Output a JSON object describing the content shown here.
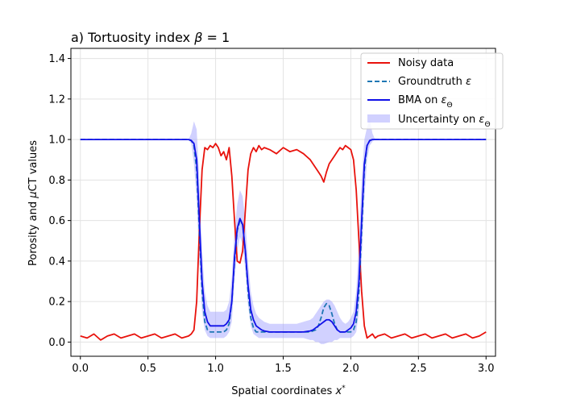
{
  "chart_data": {
    "type": "line",
    "title": "a) Tortuosity index β = 1",
    "xlabel": "Spatial coordinates x*",
    "ylabel": "Porosity and μCT values",
    "xlim": [
      -0.07,
      3.07
    ],
    "ylim": [
      -0.07,
      1.45
    ],
    "grid": true,
    "legend_position": "top-right",
    "x_ticks": [
      "0.0",
      "0.5",
      "1.0",
      "1.5",
      "2.0",
      "2.5",
      "3.0"
    ],
    "y_ticks": [
      "0.0",
      "0.2",
      "0.4",
      "0.6",
      "0.8",
      "1.0",
      "1.2",
      "1.4"
    ],
    "x": [
      0.0,
      0.05,
      0.1,
      0.15,
      0.2,
      0.25,
      0.3,
      0.35,
      0.4,
      0.45,
      0.5,
      0.55,
      0.6,
      0.65,
      0.7,
      0.75,
      0.8,
      0.82,
      0.84,
      0.86,
      0.88,
      0.9,
      0.92,
      0.94,
      0.96,
      0.98,
      1.0,
      1.02,
      1.04,
      1.06,
      1.08,
      1.1,
      1.12,
      1.14,
      1.16,
      1.18,
      1.2,
      1.22,
      1.24,
      1.26,
      1.28,
      1.3,
      1.32,
      1.34,
      1.36,
      1.4,
      1.45,
      1.5,
      1.55,
      1.6,
      1.65,
      1.7,
      1.72,
      1.74,
      1.76,
      1.78,
      1.8,
      1.82,
      1.84,
      1.86,
      1.88,
      1.9,
      1.92,
      1.94,
      1.96,
      1.98,
      2.0,
      2.02,
      2.04,
      2.06,
      2.08,
      2.1,
      2.12,
      2.14,
      2.16,
      2.18,
      2.2,
      2.25,
      2.3,
      2.35,
      2.4,
      2.45,
      2.5,
      2.55,
      2.6,
      2.65,
      2.7,
      2.75,
      2.8,
      2.85,
      2.9,
      2.95,
      3.0
    ],
    "series": [
      {
        "name": "Noisy data",
        "color": "#e8120c",
        "style": "solid",
        "values": [
          0.03,
          0.02,
          0.04,
          0.01,
          0.03,
          0.04,
          0.02,
          0.03,
          0.04,
          0.02,
          0.03,
          0.04,
          0.02,
          0.03,
          0.04,
          0.02,
          0.03,
          0.04,
          0.06,
          0.2,
          0.55,
          0.85,
          0.96,
          0.95,
          0.97,
          0.96,
          0.98,
          0.96,
          0.92,
          0.94,
          0.9,
          0.96,
          0.82,
          0.6,
          0.4,
          0.39,
          0.45,
          0.65,
          0.85,
          0.93,
          0.96,
          0.94,
          0.97,
          0.95,
          0.96,
          0.95,
          0.93,
          0.96,
          0.94,
          0.95,
          0.93,
          0.9,
          0.88,
          0.86,
          0.84,
          0.82,
          0.79,
          0.84,
          0.88,
          0.9,
          0.92,
          0.94,
          0.96,
          0.95,
          0.97,
          0.96,
          0.95,
          0.9,
          0.75,
          0.5,
          0.25,
          0.08,
          0.02,
          0.03,
          0.04,
          0.02,
          0.03,
          0.04,
          0.02,
          0.03,
          0.04,
          0.02,
          0.03,
          0.04,
          0.02,
          0.03,
          0.04,
          0.02,
          0.03,
          0.04,
          0.02,
          0.03,
          0.05
        ]
      },
      {
        "name": "Groundtruth ε",
        "color": "#1f77b4",
        "style": "dashed",
        "values": [
          1.0,
          1.0,
          1.0,
          1.0,
          1.0,
          1.0,
          1.0,
          1.0,
          1.0,
          1.0,
          1.0,
          1.0,
          1.0,
          1.0,
          1.0,
          1.0,
          1.0,
          0.995,
          0.97,
          0.85,
          0.55,
          0.25,
          0.1,
          0.06,
          0.05,
          0.05,
          0.05,
          0.05,
          0.05,
          0.05,
          0.06,
          0.09,
          0.2,
          0.4,
          0.55,
          0.6,
          0.58,
          0.45,
          0.25,
          0.12,
          0.07,
          0.05,
          0.05,
          0.05,
          0.05,
          0.05,
          0.05,
          0.05,
          0.05,
          0.05,
          0.05,
          0.05,
          0.055,
          0.06,
          0.08,
          0.12,
          0.17,
          0.19,
          0.18,
          0.14,
          0.09,
          0.06,
          0.05,
          0.05,
          0.05,
          0.05,
          0.05,
          0.06,
          0.1,
          0.25,
          0.55,
          0.85,
          0.97,
          0.995,
          1.0,
          1.0,
          1.0,
          1.0,
          1.0,
          1.0,
          1.0,
          1.0,
          1.0,
          1.0,
          1.0,
          1.0,
          1.0,
          1.0,
          1.0,
          1.0,
          1.0,
          1.0,
          1.0
        ]
      },
      {
        "name": "BMA on ε_Θ",
        "color": "#1010e8",
        "style": "solid",
        "values": [
          1.0,
          1.0,
          1.0,
          1.0,
          1.0,
          1.0,
          1.0,
          1.0,
          1.0,
          1.0,
          1.0,
          1.0,
          1.0,
          1.0,
          1.0,
          1.0,
          1.0,
          0.995,
          0.98,
          0.9,
          0.6,
          0.3,
          0.15,
          0.1,
          0.08,
          0.08,
          0.08,
          0.08,
          0.08,
          0.08,
          0.09,
          0.11,
          0.2,
          0.42,
          0.56,
          0.61,
          0.58,
          0.45,
          0.28,
          0.16,
          0.11,
          0.08,
          0.07,
          0.06,
          0.055,
          0.05,
          0.05,
          0.05,
          0.05,
          0.05,
          0.05,
          0.055,
          0.06,
          0.07,
          0.08,
          0.09,
          0.1,
          0.11,
          0.11,
          0.1,
          0.08,
          0.06,
          0.05,
          0.05,
          0.05,
          0.06,
          0.07,
          0.09,
          0.15,
          0.3,
          0.6,
          0.88,
          0.97,
          0.995,
          1.0,
          1.0,
          1.0,
          1.0,
          1.0,
          1.0,
          1.0,
          1.0,
          1.0,
          1.0,
          1.0,
          1.0,
          1.0,
          1.0,
          1.0,
          1.0,
          1.0,
          1.0,
          1.0
        ]
      }
    ],
    "band": {
      "name": "Uncertainty on ε_Θ",
      "color": "#9999ff",
      "opacity": 0.45,
      "lower": [
        1.0,
        1.0,
        1.0,
        1.0,
        1.0,
        1.0,
        1.0,
        1.0,
        1.0,
        1.0,
        1.0,
        1.0,
        1.0,
        1.0,
        1.0,
        1.0,
        1.0,
        0.98,
        0.88,
        0.7,
        0.4,
        0.15,
        0.06,
        0.03,
        0.02,
        0.02,
        0.02,
        0.02,
        0.02,
        0.02,
        0.03,
        0.05,
        0.1,
        0.3,
        0.45,
        0.52,
        0.48,
        0.35,
        0.18,
        0.08,
        0.04,
        0.03,
        0.02,
        0.02,
        0.02,
        0.02,
        0.02,
        0.02,
        0.02,
        0.02,
        0.02,
        0.01,
        0.01,
        0.0,
        0.0,
        -0.01,
        -0.01,
        -0.005,
        0.0,
        0.0,
        0.01,
        0.01,
        0.02,
        0.02,
        0.02,
        0.02,
        0.02,
        0.03,
        0.05,
        0.15,
        0.4,
        0.7,
        0.9,
        0.97,
        0.99,
        1.0,
        1.0,
        1.0,
        1.0,
        1.0,
        1.0,
        1.0,
        1.0,
        1.0,
        1.0,
        1.0,
        1.0,
        1.0,
        1.0,
        1.0,
        1.0,
        1.0,
        1.0
      ],
      "upper": [
        1.0,
        1.0,
        1.0,
        1.0,
        1.0,
        1.0,
        1.0,
        1.0,
        1.0,
        1.0,
        1.0,
        1.0,
        1.0,
        1.0,
        1.0,
        1.0,
        1.0,
        1.03,
        1.09,
        1.05,
        0.8,
        0.45,
        0.25,
        0.18,
        0.15,
        0.15,
        0.15,
        0.15,
        0.15,
        0.15,
        0.16,
        0.2,
        0.32,
        0.55,
        0.68,
        0.75,
        0.72,
        0.6,
        0.4,
        0.25,
        0.18,
        0.14,
        0.12,
        0.11,
        0.1,
        0.09,
        0.09,
        0.09,
        0.09,
        0.09,
        0.1,
        0.11,
        0.12,
        0.14,
        0.16,
        0.18,
        0.2,
        0.21,
        0.21,
        0.2,
        0.18,
        0.15,
        0.12,
        0.1,
        0.09,
        0.1,
        0.12,
        0.15,
        0.25,
        0.5,
        0.8,
        1.0,
        1.06,
        1.1,
        1.03,
        1.0,
        1.0,
        1.0,
        1.0,
        1.0,
        1.0,
        1.0,
        1.0,
        1.0,
        1.0,
        1.0,
        1.0,
        1.0,
        1.0,
        1.0,
        1.0,
        1.0,
        1.0
      ]
    }
  }
}
